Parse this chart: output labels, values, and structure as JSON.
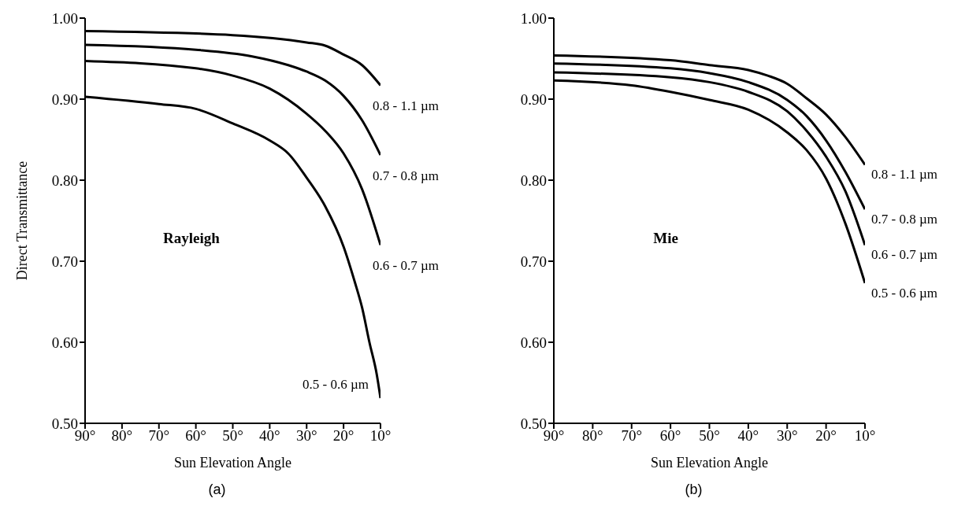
{
  "chart_data": [
    {
      "type": "line",
      "xlabel": "Sun Elevation Angle",
      "ylabel": "Direct Transmittance",
      "annotations": [
        "Rayleigh",
        "(a)"
      ],
      "marker": "none",
      "line_style": "solid",
      "grid": false,
      "legend": false,
      "xlim": [
        90,
        10
      ],
      "xticks": [
        {
          "value": 90,
          "label": "90°"
        },
        {
          "value": 80,
          "label": "80°"
        },
        {
          "value": 70,
          "label": "70°"
        },
        {
          "value": 60,
          "label": "60°"
        },
        {
          "value": 50,
          "label": "50°"
        },
        {
          "value": 40,
          "label": "40°"
        },
        {
          "value": 30,
          "label": "30°"
        },
        {
          "value": 20,
          "label": "20°"
        },
        {
          "value": 10,
          "label": "10°"
        }
      ],
      "ylim": [
        0.5,
        1.0
      ],
      "yticks": [
        {
          "value": 0.5,
          "label": "0.50"
        },
        {
          "value": 0.6,
          "label": "0.60"
        },
        {
          "value": 0.7,
          "label": "0.70"
        },
        {
          "value": 0.8,
          "label": "0.80"
        },
        {
          "value": 0.9,
          "label": "0.90"
        },
        {
          "value": 1.0,
          "label": "1.00"
        }
      ],
      "series": [
        {
          "name": "0.8 - 1.1 µm",
          "color": "#000000",
          "x": [
            90,
            50,
            30,
            25,
            20,
            15,
            10
          ],
          "values": [
            0.984,
            0.979,
            0.97,
            0.966,
            0.955,
            0.942,
            0.917
          ]
        },
        {
          "name": "0.7 - 0.8 µm",
          "color": "#000000",
          "x": [
            90,
            60,
            45,
            35,
            30,
            25,
            20,
            15,
            10
          ],
          "values": [
            0.967,
            0.961,
            0.953,
            0.942,
            0.934,
            0.923,
            0.904,
            0.874,
            0.831
          ]
        },
        {
          "name": "0.6 - 0.7 µm",
          "color": "#000000",
          "x": [
            90,
            60,
            50,
            40,
            30,
            25,
            20,
            15,
            10
          ],
          "values": [
            0.947,
            0.938,
            0.929,
            0.913,
            0.882,
            0.861,
            0.833,
            0.789,
            0.72
          ]
        },
        {
          "name": "0.5 - 0.6 µm",
          "color": "#000000",
          "x": [
            90,
            70,
            60,
            50,
            40,
            35,
            30,
            25,
            20,
            17,
            15,
            13,
            11,
            10
          ],
          "values": [
            0.903,
            0.894,
            0.888,
            0.87,
            0.849,
            0.833,
            0.803,
            0.768,
            0.718,
            0.675,
            0.643,
            0.6,
            0.56,
            0.531
          ]
        }
      ]
    },
    {
      "type": "line",
      "xlabel": "Sun Elevation Angle",
      "annotations": [
        "Mie",
        "(b)"
      ],
      "marker": "none",
      "line_style": "solid",
      "grid": false,
      "legend": false,
      "xlim": [
        90,
        10
      ],
      "xticks": [
        {
          "value": 90,
          "label": "90°"
        },
        {
          "value": 80,
          "label": "80°"
        },
        {
          "value": 70,
          "label": "70°"
        },
        {
          "value": 60,
          "label": "60°"
        },
        {
          "value": 50,
          "label": "50°"
        },
        {
          "value": 40,
          "label": "40°"
        },
        {
          "value": 30,
          "label": "30°"
        },
        {
          "value": 20,
          "label": "20°"
        },
        {
          "value": 10,
          "label": "10°"
        }
      ],
      "ylim": [
        0.5,
        1.0
      ],
      "yticks": [
        {
          "value": 0.5,
          "label": "0.50"
        },
        {
          "value": 0.6,
          "label": "0.60"
        },
        {
          "value": 0.7,
          "label": "0.70"
        },
        {
          "value": 0.8,
          "label": "0.80"
        },
        {
          "value": 0.9,
          "label": "0.90"
        },
        {
          "value": 1.0,
          "label": "1.00"
        }
      ],
      "series": [
        {
          "name": "0.8 - 1.1 µm",
          "color": "#000000",
          "x": [
            90,
            60,
            50,
            40,
            35,
            30,
            25,
            20,
            15,
            10
          ],
          "values": [
            0.954,
            0.948,
            0.942,
            0.936,
            0.929,
            0.919,
            0.901,
            0.881,
            0.853,
            0.819
          ]
        },
        {
          "name": "0.7 - 0.8 µm",
          "color": "#000000",
          "x": [
            90,
            60,
            50,
            40,
            30,
            25,
            20,
            15,
            10
          ],
          "values": [
            0.944,
            0.938,
            0.932,
            0.921,
            0.899,
            0.879,
            0.849,
            0.81,
            0.764
          ]
        },
        {
          "name": "0.6 - 0.7 µm",
          "color": "#000000",
          "x": [
            90,
            60,
            50,
            40,
            30,
            25,
            20,
            15,
            10
          ],
          "values": [
            0.933,
            0.927,
            0.921,
            0.909,
            0.885,
            0.861,
            0.829,
            0.786,
            0.72
          ]
        },
        {
          "name": "0.5 - 0.6 µm",
          "color": "#000000",
          "x": [
            90,
            70,
            60,
            50,
            40,
            30,
            25,
            20,
            15,
            10
          ],
          "values": [
            0.923,
            0.917,
            0.909,
            0.899,
            0.887,
            0.859,
            0.837,
            0.802,
            0.746,
            0.673
          ]
        }
      ]
    }
  ]
}
